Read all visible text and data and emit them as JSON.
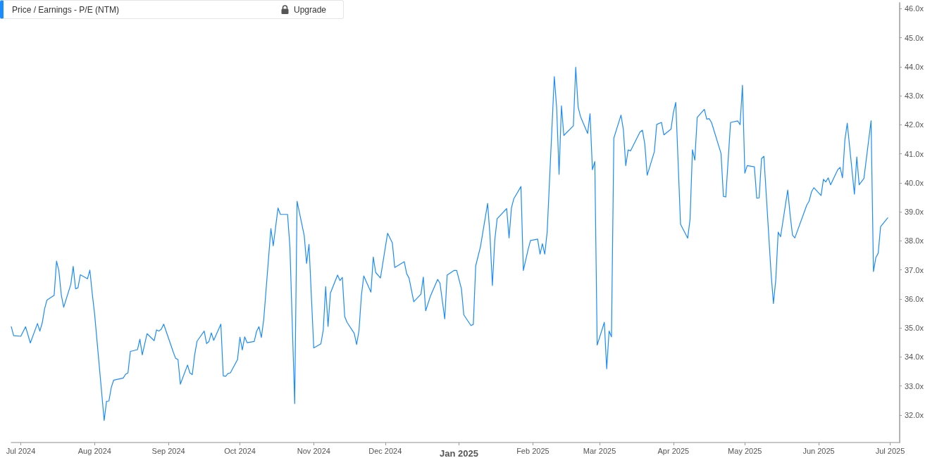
{
  "chart_data": {
    "type": "line",
    "title": "Price / Earnings - P/E (NTM)",
    "annotations": [
      "Upgrade"
    ],
    "x": [
      "2024-06-27",
      "2024-06-28",
      "2024-07-01",
      "2024-07-03",
      "2024-07-05",
      "2024-07-08",
      "2024-07-09",
      "2024-07-10",
      "2024-07-11",
      "2024-07-12",
      "2024-07-15",
      "2024-07-16",
      "2024-07-17",
      "2024-07-18",
      "2024-07-19",
      "2024-07-22",
      "2024-07-23",
      "2024-07-24",
      "2024-07-25",
      "2024-07-26",
      "2024-07-29",
      "2024-07-30",
      "2024-07-31",
      "2024-08-01",
      "2024-08-05",
      "2024-08-06",
      "2024-08-07",
      "2024-08-08",
      "2024-08-09",
      "2024-08-13",
      "2024-08-14",
      "2024-08-15",
      "2024-08-16",
      "2024-08-19",
      "2024-08-20",
      "2024-08-21",
      "2024-08-23",
      "2024-08-26",
      "2024-08-27",
      "2024-08-28",
      "2024-08-29",
      "2024-08-30",
      "2024-09-03",
      "2024-09-04",
      "2024-09-05",
      "2024-09-06",
      "2024-09-09",
      "2024-09-10",
      "2024-09-11",
      "2024-09-12",
      "2024-09-13",
      "2024-09-16",
      "2024-09-17",
      "2024-09-18",
      "2024-09-19",
      "2024-09-20",
      "2024-09-23",
      "2024-09-24",
      "2024-09-25",
      "2024-09-26",
      "2024-09-27",
      "2024-09-30",
      "2024-10-01",
      "2024-10-02",
      "2024-10-03",
      "2024-10-04",
      "2024-10-07",
      "2024-10-08",
      "2024-10-09",
      "2024-10-10",
      "2024-10-11",
      "2024-10-14",
      "2024-10-15",
      "2024-10-17",
      "2024-10-18",
      "2024-10-21",
      "2024-10-22",
      "2024-10-24",
      "2024-10-25",
      "2024-10-28",
      "2024-10-29",
      "2024-10-30",
      "2024-11-01",
      "2024-11-04",
      "2024-11-05",
      "2024-11-06",
      "2024-11-07",
      "2024-11-08",
      "2024-11-11",
      "2024-11-12",
      "2024-11-13",
      "2024-11-14",
      "2024-11-15",
      "2024-11-18",
      "2024-11-19",
      "2024-11-20",
      "2024-11-21",
      "2024-11-22",
      "2024-11-25",
      "2024-11-26",
      "2024-11-27",
      "2024-11-29",
      "2024-12-02",
      "2024-12-04",
      "2024-12-05",
      "2024-12-09",
      "2024-12-10",
      "2024-12-11",
      "2024-12-13",
      "2024-12-16",
      "2024-12-17",
      "2024-12-18",
      "2024-12-20",
      "2024-12-23",
      "2024-12-24",
      "2024-12-26",
      "2024-12-27",
      "2024-12-30",
      "2024-12-31",
      "2025-01-02",
      "2025-01-03",
      "2025-01-06",
      "2025-01-07",
      "2025-01-08",
      "2025-01-10",
      "2025-01-13",
      "2025-01-14",
      "2025-01-15",
      "2025-01-16",
      "2025-01-17",
      "2025-01-21",
      "2025-01-22",
      "2025-01-23",
      "2025-01-24",
      "2025-01-27",
      "2025-01-28",
      "2025-01-30",
      "2025-01-31",
      "2025-02-03",
      "2025-02-04",
      "2025-02-05",
      "2025-02-06",
      "2025-02-07",
      "2025-02-10",
      "2025-02-11",
      "2025-02-12",
      "2025-02-13",
      "2025-02-14",
      "2025-02-18",
      "2025-02-19",
      "2025-02-20",
      "2025-02-21",
      "2025-02-24",
      "2025-02-25",
      "2025-02-26",
      "2025-02-27",
      "2025-02-28",
      "2025-03-03",
      "2025-03-04",
      "2025-03-05",
      "2025-03-06",
      "2025-03-07",
      "2025-03-10",
      "2025-03-11",
      "2025-03-12",
      "2025-03-13",
      "2025-03-14",
      "2025-03-18",
      "2025-03-19",
      "2025-03-20",
      "2025-03-21",
      "2025-03-24",
      "2025-03-25",
      "2025-03-27",
      "2025-03-28",
      "2025-03-31",
      "2025-04-01",
      "2025-04-02",
      "2025-04-04",
      "2025-04-07",
      "2025-04-08",
      "2025-04-09",
      "2025-04-10",
      "2025-04-11",
      "2025-04-14",
      "2025-04-15",
      "2025-04-16",
      "2025-04-17",
      "2025-04-21",
      "2025-04-22",
      "2025-04-23",
      "2025-04-25",
      "2025-04-28",
      "2025-04-29",
      "2025-04-30",
      "2025-05-01",
      "2025-05-02",
      "2025-05-05",
      "2025-05-06",
      "2025-05-07",
      "2025-05-08",
      "2025-05-09",
      "2025-05-12",
      "2025-05-13",
      "2025-05-14",
      "2025-05-15",
      "2025-05-16",
      "2025-05-19",
      "2025-05-20",
      "2025-05-21",
      "2025-05-22",
      "2025-05-27",
      "2025-05-28",
      "2025-05-29",
      "2025-05-30",
      "2025-06-02",
      "2025-06-03",
      "2025-06-04",
      "2025-06-05",
      "2025-06-06",
      "2025-06-09",
      "2025-06-10",
      "2025-06-11",
      "2025-06-12",
      "2025-06-13",
      "2025-06-16",
      "2025-06-17",
      "2025-06-18",
      "2025-06-20",
      "2025-06-23",
      "2025-06-24",
      "2025-06-25",
      "2025-06-26",
      "2025-06-27",
      "2025-06-30"
    ],
    "series": [
      {
        "color": "#1a8cff",
        "values": [
          35.04,
          34.73,
          34.71,
          35.04,
          34.48,
          35.15,
          34.89,
          35.17,
          35.66,
          35.96,
          36.12,
          37.3,
          36.96,
          36.14,
          35.71,
          36.5,
          37.12,
          36.35,
          36.38,
          36.83,
          36.69,
          36.99,
          36.18,
          35.47,
          31.81,
          32.47,
          32.48,
          32.95,
          33.2,
          33.27,
          33.4,
          33.45,
          34.19,
          34.25,
          34.61,
          34.07,
          34.8,
          34.56,
          34.93,
          34.89,
          34.96,
          35.13,
          34.17,
          33.95,
          33.91,
          33.06,
          33.72,
          33.45,
          33.39,
          34.07,
          34.54,
          34.89,
          34.46,
          34.53,
          34.83,
          34.57,
          35.13,
          33.35,
          33.33,
          33.43,
          33.45,
          33.91,
          34.68,
          34.24,
          34.69,
          34.49,
          34.53,
          34.88,
          35.04,
          34.67,
          35.29,
          38.42,
          37.83,
          39.13,
          38.91,
          38.91,
          37.78,
          32.39,
          39.36,
          38.18,
          37.22,
          37.88,
          34.31,
          34.45,
          34.93,
          36.42,
          35.05,
          36.2,
          36.82,
          36.63,
          36.74,
          35.39,
          35.19,
          34.81,
          34.43,
          34.91,
          36.11,
          36.79,
          36.23,
          37.44,
          36.91,
          36.72,
          38.26,
          37.93,
          37.08,
          37.28,
          36.87,
          36.72,
          35.9,
          36.16,
          36.75,
          35.59,
          36.1,
          36.67,
          36.54,
          35.31,
          36.82,
          36.98,
          36.98,
          36.35,
          35.45,
          35.08,
          35.12,
          37.14,
          37.8,
          39.29,
          38.18,
          36.46,
          38.02,
          38.76,
          39.11,
          38.1,
          39.13,
          39.45,
          39.87,
          36.98,
          37.7,
          38.01,
          38.06,
          37.54,
          37.9,
          37.54,
          38.3,
          43.66,
          42.56,
          40.29,
          42.65,
          41.63,
          41.96,
          43.98,
          42.61,
          42.28,
          41.7,
          42.38,
          40.45,
          40.73,
          34.41,
          35.19,
          33.59,
          34.89,
          34.69,
          41.54,
          42.33,
          41.83,
          40.59,
          41.13,
          41.1,
          41.75,
          41.81,
          41.33,
          40.26,
          41.07,
          42.01,
          42.08,
          41.65,
          41.85,
          42.42,
          42.77,
          38.57,
          38.09,
          38.75,
          41.14,
          40.78,
          42.25,
          42.53,
          42.19,
          42.21,
          42.08,
          41.01,
          39.53,
          39.51,
          42.08,
          42.13,
          42.0,
          43.36,
          40.33,
          40.59,
          40.55,
          39.47,
          39.48,
          40.83,
          40.91,
          36.9,
          35.84,
          36.67,
          38.3,
          38.14,
          39.75,
          38.91,
          38.2,
          38.1,
          39.23,
          39.37,
          39.69,
          39.83,
          39.56,
          40.12,
          40.03,
          40.17,
          39.93,
          40.45,
          40.53,
          40.17,
          41.47,
          42.05,
          39.61,
          40.89,
          39.93,
          40.15,
          42.14,
          36.94,
          37.42,
          37.58,
          38.49,
          38.79
        ]
      }
    ],
    "xlim": [
      "2024-06-27",
      "2025-07-05"
    ],
    "xticks": [
      {
        "value": "2024-07-01",
        "label": "Jul 2024"
      },
      {
        "value": "2024-08-01",
        "label": "Aug 2024"
      },
      {
        "value": "2024-09-01",
        "label": "Sep 2024"
      },
      {
        "value": "2024-10-01",
        "label": "Oct 2024"
      },
      {
        "value": "2024-11-01",
        "label": "Nov 2024"
      },
      {
        "value": "2024-12-01",
        "label": "Dec 2024"
      },
      {
        "value": "2025-01-01",
        "label": "Jan 2025"
      },
      {
        "value": "2025-02-01",
        "label": "Feb 2025"
      },
      {
        "value": "2025-03-01",
        "label": "Mar 2025"
      },
      {
        "value": "2025-04-01",
        "label": "Apr 2025"
      },
      {
        "value": "2025-05-01",
        "label": "May 2025"
      },
      {
        "value": "2025-06-01",
        "label": "Jun 2025"
      },
      {
        "value": "2025-07-01",
        "label": "Jul 2025"
      }
    ],
    "ylim": [
      31.05,
      46.2
    ],
    "yticks": [
      {
        "value": 32,
        "label": "32.0x"
      },
      {
        "value": 33,
        "label": "33.0x"
      },
      {
        "value": 34,
        "label": "34.0x"
      },
      {
        "value": 35,
        "label": "35.0x"
      },
      {
        "value": 36,
        "label": "36.0x"
      },
      {
        "value": 37,
        "label": "37.0x"
      },
      {
        "value": 38,
        "label": "38.0x"
      },
      {
        "value": 39,
        "label": "39.0x"
      },
      {
        "value": 40,
        "label": "40.0x"
      },
      {
        "value": 41,
        "label": "41.0x"
      },
      {
        "value": 42,
        "label": "42.0x"
      },
      {
        "value": 43,
        "label": "43.0x"
      },
      {
        "value": 44,
        "label": "44.0x"
      },
      {
        "value": 45,
        "label": "45.0x"
      },
      {
        "value": 46,
        "label": "46.0x"
      }
    ]
  }
}
